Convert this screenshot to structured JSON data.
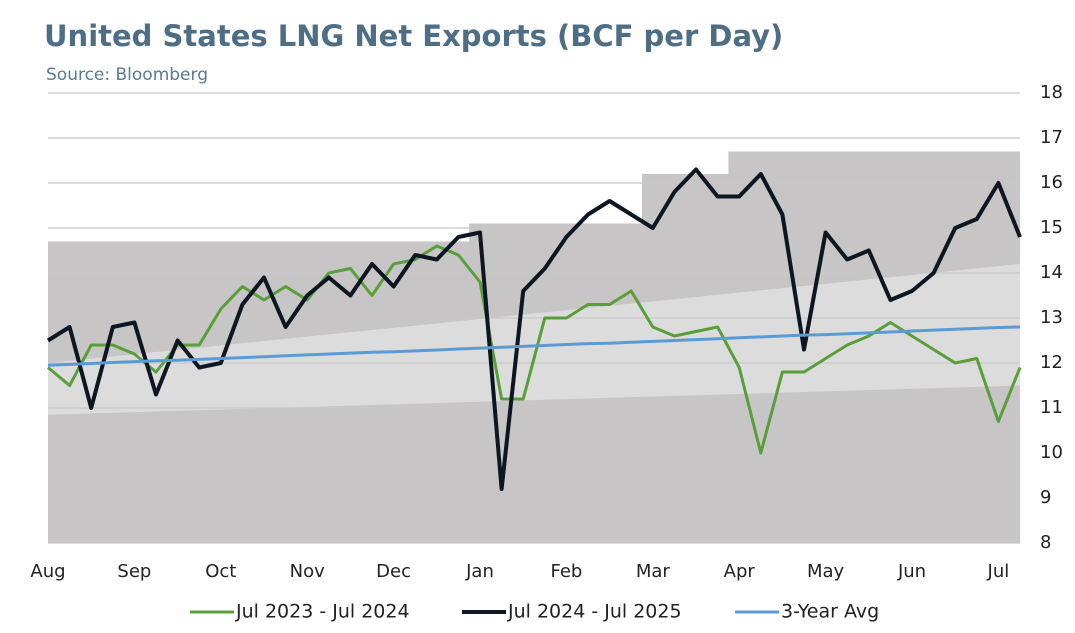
{
  "chart_data": {
    "type": "line",
    "title": "United States LNG Net Exports (BCF per Day)",
    "subtitle": "Source: Bloomberg",
    "categories": [
      "Aug",
      null,
      null,
      null,
      "Sep",
      null,
      null,
      null,
      "Oct",
      null,
      null,
      null,
      "Nov",
      null,
      null,
      null,
      "Dec",
      null,
      null,
      null,
      "Jan",
      null,
      null,
      null,
      "Feb",
      null,
      null,
      null,
      "Mar",
      null,
      null,
      null,
      "Apr",
      null,
      null,
      null,
      "May",
      null,
      null,
      null,
      "Jun",
      null,
      null,
      null,
      "Jul",
      null
    ],
    "ylim": [
      8,
      18
    ],
    "yticks": [
      8,
      9,
      10,
      11,
      12,
      13,
      14,
      15,
      16,
      17,
      18
    ],
    "grid": true,
    "y_axis_side": "right",
    "range_max": [
      14.7,
      14.7,
      14.7,
      14.7,
      14.7,
      14.7,
      14.7,
      14.7,
      14.7,
      14.7,
      14.7,
      14.7,
      14.7,
      14.7,
      14.7,
      14.7,
      14.7,
      14.7,
      14.7,
      14.7,
      15.1,
      15.1,
      15.1,
      15.1,
      15.1,
      15.1,
      15.1,
      15.1,
      16.2,
      16.2,
      16.2,
      16.2,
      16.7,
      16.7,
      16.7,
      16.7,
      16.7,
      16.7,
      16.7,
      16.7,
      16.7,
      16.7,
      16.7,
      16.7,
      16.7,
      16.7
    ],
    "range_color": "#c7c5c5",
    "inner_band": {
      "lower": [
        10.85,
        11.5
      ],
      "upper": [
        12.0,
        14.2
      ],
      "color": "#dddcdc"
    },
    "series": [
      {
        "name": "Jul 2023 - Jul 2024",
        "color": "#5a9e3c",
        "width": 3,
        "values": [
          11.9,
          11.5,
          12.4,
          12.4,
          12.2,
          11.8,
          12.4,
          12.4,
          13.2,
          13.7,
          13.4,
          13.7,
          13.4,
          14.0,
          14.1,
          13.5,
          14.2,
          14.3,
          14.6,
          14.4,
          13.8,
          11.2,
          11.2,
          13.0,
          13.0,
          13.3,
          13.3,
          13.6,
          12.8,
          12.6,
          12.7,
          12.8,
          11.9,
          10.0,
          11.8,
          11.8,
          12.1,
          12.4,
          12.6,
          12.9,
          12.6,
          12.3,
          12.0,
          12.1,
          10.7,
          11.9
        ]
      },
      {
        "name": "Jul 2024 - Jul 2025",
        "color": "#0d1621",
        "width": 4,
        "values": [
          12.5,
          12.8,
          11.0,
          12.8,
          12.9,
          11.3,
          12.5,
          11.9,
          12.0,
          13.3,
          13.9,
          12.8,
          13.5,
          13.9,
          13.5,
          14.2,
          13.7,
          14.4,
          14.3,
          14.8,
          14.9,
          9.2,
          13.6,
          14.1,
          14.8,
          15.3,
          15.6,
          15.3,
          15.0,
          15.8,
          16.3,
          15.7,
          15.7,
          16.2,
          15.3,
          12.3,
          14.9,
          14.3,
          14.5,
          13.4,
          13.6,
          14.0,
          15.0,
          15.2,
          16.0,
          14.8
        ]
      },
      {
        "name": "3-Year Avg",
        "color": "#5b9bd5",
        "width": 3,
        "values": [
          11.95,
          11.97,
          11.99,
          12.01,
          12.03,
          12.05,
          12.06,
          12.08,
          12.1,
          12.12,
          12.14,
          12.16,
          12.18,
          12.2,
          12.22,
          12.24,
          12.25,
          12.27,
          12.29,
          12.31,
          12.33,
          12.35,
          12.37,
          12.39,
          12.41,
          12.43,
          12.44,
          12.46,
          12.48,
          12.5,
          12.52,
          12.54,
          12.56,
          12.58,
          12.6,
          12.62,
          12.63,
          12.65,
          12.67,
          12.69,
          12.71,
          12.73,
          12.75,
          12.77,
          12.79,
          12.8
        ]
      }
    ]
  }
}
